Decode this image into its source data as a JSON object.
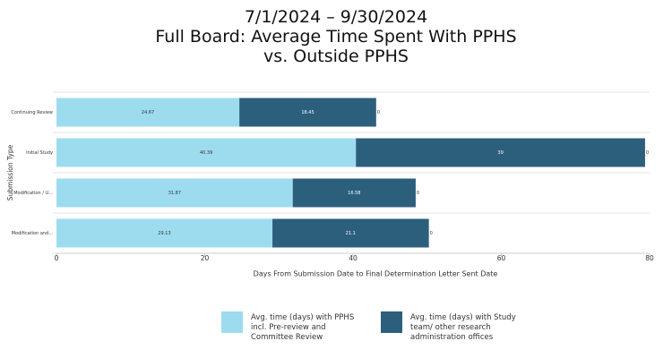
{
  "chart_data": {
    "type": "stacked-barh",
    "title": [
      "7/1/2024 – 9/30/2024",
      "Full Board: Average Time Spent With PPHS",
      "vs. Outside PPHS"
    ],
    "xlabel": "Days From Submission Date to Final Determination Letter Sent Date",
    "ylabel": "Submission Type",
    "categories": [
      "Continuing Review",
      "Initial Study",
      "Modification / U...",
      "Modification and..."
    ],
    "series": [
      {
        "name": "Avg. time (days) with PPHS incl. Pre-review and Committee Review",
        "color": "#9ddcef",
        "values": [
          24.67,
          40.39,
          31.87,
          29.13
        ]
      },
      {
        "name": "Avg. time (days) with Study team/ other research administration offices",
        "color": "#2c5f7c",
        "values": [
          18.45,
          39,
          16.58,
          21.1
        ]
      },
      {
        "values": [
          0,
          0,
          0,
          0
        ]
      }
    ],
    "xlim": [
      0,
      80
    ],
    "xticks": [
      0,
      20,
      40,
      60,
      80
    ]
  }
}
